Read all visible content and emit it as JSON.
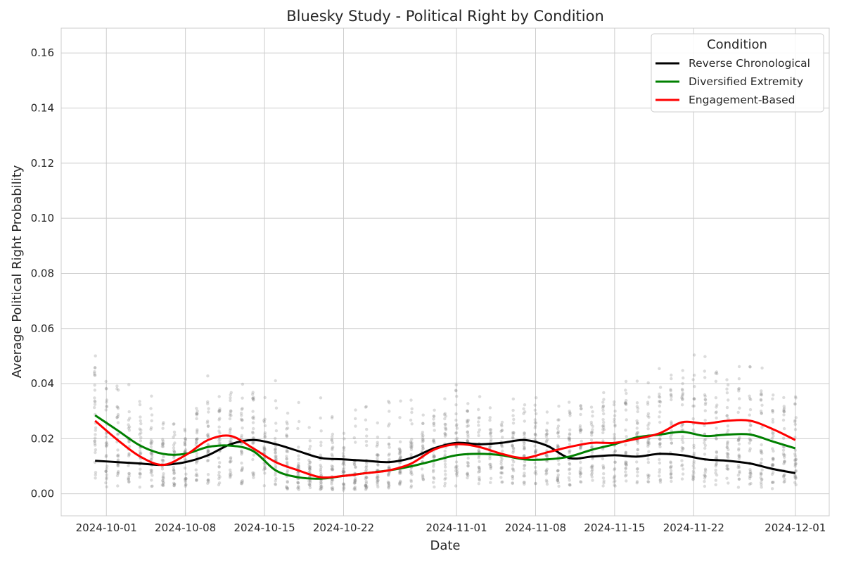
{
  "chart_data": {
    "type": "scatter",
    "title": "Bluesky Study - Political Right by Condition",
    "xlabel": "Date",
    "ylabel": "Average Political Right Probability",
    "x_ticks": [
      "2024-10-01",
      "2024-10-08",
      "2024-10-15",
      "2024-10-22",
      "2024-11-01",
      "2024-11-08",
      "2024-11-15",
      "2024-11-22",
      "2024-12-01"
    ],
    "y_ticks": [
      "0.00",
      "0.02",
      "0.04",
      "0.06",
      "0.08",
      "0.10",
      "0.12",
      "0.14",
      "0.16"
    ],
    "xlim": [
      "2024-09-27",
      "2024-12-04"
    ],
    "ylim": [
      -0.008,
      0.169
    ],
    "grid": true,
    "legend": {
      "title": "Condition",
      "placement": "top-right"
    },
    "colors": {
      "points": "#808080",
      "grid": "#cccccc"
    },
    "series": [
      {
        "name": "Reverse Chronological",
        "color": "#000000",
        "x": [
          "2024-09-30",
          "2024-10-02",
          "2024-10-04",
          "2024-10-06",
          "2024-10-08",
          "2024-10-10",
          "2024-10-12",
          "2024-10-14",
          "2024-10-16",
          "2024-10-18",
          "2024-10-20",
          "2024-10-22",
          "2024-10-24",
          "2024-10-26",
          "2024-10-28",
          "2024-10-30",
          "2024-11-01",
          "2024-11-03",
          "2024-11-05",
          "2024-11-07",
          "2024-11-09",
          "2024-11-11",
          "2024-11-13",
          "2024-11-15",
          "2024-11-17",
          "2024-11-19",
          "2024-11-21",
          "2024-11-23",
          "2024-11-25",
          "2024-11-27",
          "2024-11-29",
          "2024-12-01"
        ],
        "y": [
          0.012,
          0.0115,
          0.011,
          0.0105,
          0.0115,
          0.014,
          0.018,
          0.0195,
          0.018,
          0.0155,
          0.013,
          0.0125,
          0.012,
          0.0115,
          0.013,
          0.0165,
          0.0185,
          0.018,
          0.0185,
          0.0195,
          0.0175,
          0.013,
          0.0135,
          0.014,
          0.0135,
          0.0145,
          0.014,
          0.0125,
          0.012,
          0.011,
          0.009,
          0.0075
        ]
      },
      {
        "name": "Diversified Extremity",
        "color": "#008000",
        "x": [
          "2024-09-30",
          "2024-10-02",
          "2024-10-04",
          "2024-10-06",
          "2024-10-08",
          "2024-10-10",
          "2024-10-12",
          "2024-10-14",
          "2024-10-16",
          "2024-10-18",
          "2024-10-20",
          "2024-10-22",
          "2024-10-24",
          "2024-10-26",
          "2024-10-28",
          "2024-10-30",
          "2024-11-01",
          "2024-11-03",
          "2024-11-05",
          "2024-11-07",
          "2024-11-09",
          "2024-11-11",
          "2024-11-13",
          "2024-11-15",
          "2024-11-17",
          "2024-11-19",
          "2024-11-21",
          "2024-11-23",
          "2024-11-25",
          "2024-11-27",
          "2024-11-29",
          "2024-12-01"
        ],
        "y": [
          0.0285,
          0.023,
          0.0175,
          0.0145,
          0.0145,
          0.017,
          0.0175,
          0.0155,
          0.0085,
          0.006,
          0.0055,
          0.0065,
          0.0075,
          0.0085,
          0.01,
          0.012,
          0.014,
          0.0145,
          0.014,
          0.0125,
          0.0125,
          0.0135,
          0.016,
          0.018,
          0.0205,
          0.0215,
          0.0225,
          0.021,
          0.0215,
          0.0215,
          0.019,
          0.0165
        ]
      },
      {
        "name": "Engagement-Based",
        "color": "#ff0000",
        "x": [
          "2024-09-30",
          "2024-10-02",
          "2024-10-04",
          "2024-10-06",
          "2024-10-08",
          "2024-10-10",
          "2024-10-12",
          "2024-10-14",
          "2024-10-16",
          "2024-10-18",
          "2024-10-20",
          "2024-10-22",
          "2024-10-24",
          "2024-10-26",
          "2024-10-28",
          "2024-10-30",
          "2024-11-01",
          "2024-11-03",
          "2024-11-05",
          "2024-11-07",
          "2024-11-09",
          "2024-11-11",
          "2024-11-13",
          "2024-11-15",
          "2024-11-17",
          "2024-11-19",
          "2024-11-21",
          "2024-11-23",
          "2024-11-25",
          "2024-11-27",
          "2024-11-29",
          "2024-12-01"
        ],
        "y": [
          0.0265,
          0.0195,
          0.0135,
          0.0105,
          0.014,
          0.0195,
          0.021,
          0.0165,
          0.0115,
          0.0085,
          0.006,
          0.0065,
          0.0075,
          0.0085,
          0.011,
          0.016,
          0.018,
          0.017,
          0.0145,
          0.013,
          0.015,
          0.017,
          0.0185,
          0.0185,
          0.02,
          0.022,
          0.026,
          0.0255,
          0.0265,
          0.0265,
          0.0235,
          0.0195
        ]
      }
    ]
  }
}
